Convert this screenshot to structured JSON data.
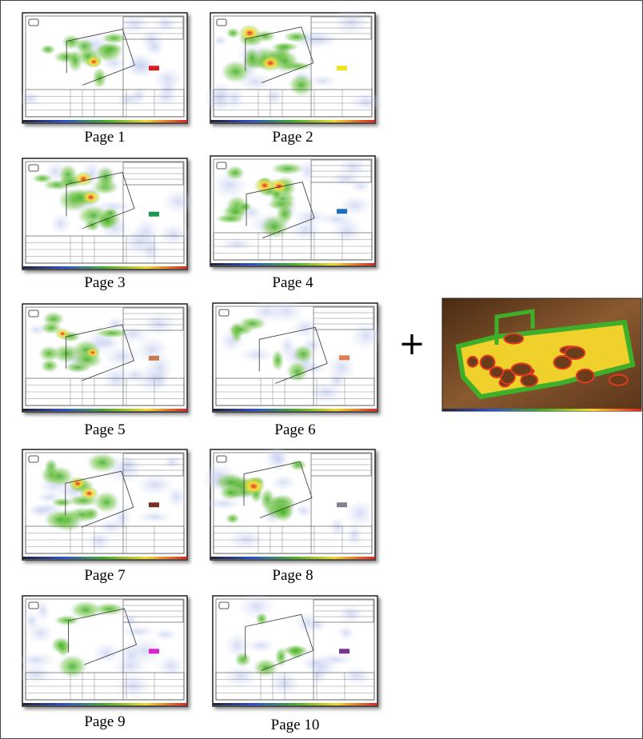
{
  "panels": [
    {
      "label": "Page 1"
    },
    {
      "label": "Page 2"
    },
    {
      "label": "Page 3"
    },
    {
      "label": "Page 4"
    },
    {
      "label": "Page 5"
    },
    {
      "label": "Page 6"
    },
    {
      "label": "Page 7"
    },
    {
      "label": "Page 8"
    },
    {
      "label": "Page 9"
    },
    {
      "label": "Page 10"
    }
  ],
  "operator": "+"
}
